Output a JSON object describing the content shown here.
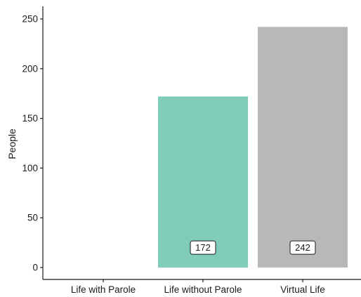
{
  "chart_data": {
    "type": "bar",
    "categories": [
      "Life with Parole",
      "Life without Parole",
      "Virtual Life"
    ],
    "values": [
      0,
      172,
      242
    ],
    "data_labels": [
      "",
      "172",
      "242"
    ],
    "colors": [
      "#7FCDB8",
      "#7FCDB8",
      "#B8B8B8"
    ],
    "title": "",
    "xlabel": "",
    "ylabel": "People",
    "ylim": [
      0,
      250
    ],
    "yticks": [
      0,
      50,
      100,
      150,
      200,
      250
    ],
    "grid": false,
    "legend": "none"
  }
}
